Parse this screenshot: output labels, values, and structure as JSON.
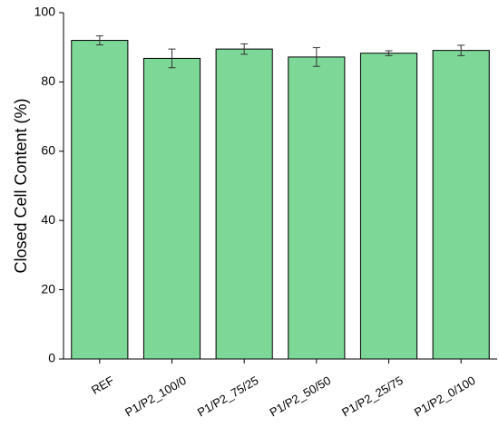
{
  "chart_data": {
    "type": "bar",
    "ylabel": "Closed Cell Content (%)",
    "categories": [
      "REF",
      "P1/P2_100/0",
      "P1/P2_75/25",
      "P1/P2_50/50",
      "P1/P2_25/75",
      "P1/P2_0/100"
    ],
    "values": [
      92.0,
      86.8,
      89.5,
      87.2,
      88.3,
      89.1
    ],
    "errors": [
      1.3,
      2.7,
      1.5,
      2.7,
      0.7,
      1.5
    ],
    "color": "#7dd898",
    "ylim": [
      0,
      100
    ],
    "yticks": [
      0,
      20,
      40,
      60,
      80,
      100
    ],
    "grid": false
  }
}
